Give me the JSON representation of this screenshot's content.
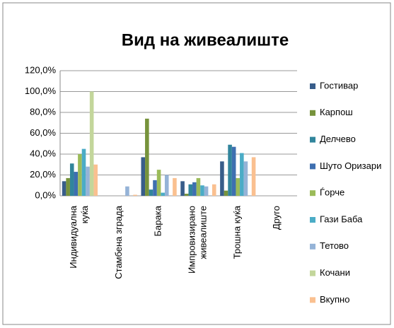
{
  "chart_data": {
    "type": "bar",
    "title": "Вид на живеалиште",
    "categories": [
      "Индивидуална\nкуќа",
      "Стамбена зграда",
      "Барака",
      "Импровизирано\nживеалиште",
      "Трошна куќа",
      "Друго"
    ],
    "series": [
      {
        "name": "Гостивар",
        "color": "#385d8a",
        "values": [
          14,
          0,
          37,
          14,
          33,
          0
        ]
      },
      {
        "name": "Карпош",
        "color": "#77933c",
        "values": [
          17,
          0,
          74,
          2,
          5,
          0
        ]
      },
      {
        "name": "Делчево",
        "color": "#31859c",
        "values": [
          31,
          0,
          6,
          11,
          49,
          0
        ]
      },
      {
        "name": "Шуто Оризари",
        "color": "#3e6fb0",
        "values": [
          23,
          0,
          15,
          13,
          47,
          0
        ]
      },
      {
        "name": "Ѓорче",
        "color": "#9bbb59",
        "values": [
          40,
          0,
          25,
          17,
          17,
          0
        ]
      },
      {
        "name": "Гази Баба",
        "color": "#4bacc6",
        "values": [
          45,
          0,
          3,
          10,
          41,
          0
        ]
      },
      {
        "name": "Тетово",
        "color": "#95b3d7",
        "values": [
          28,
          9,
          20,
          9,
          33,
          0
        ]
      },
      {
        "name": "Кочани",
        "color": "#c3d69b",
        "values": [
          100,
          0,
          0,
          0,
          0,
          0
        ]
      },
      {
        "name": "Вкупно",
        "color": "#fac090",
        "values": [
          30,
          1,
          17,
          11,
          37,
          0
        ]
      }
    ],
    "ylim": [
      0,
      120
    ],
    "yticks": [
      {
        "value": 0,
        "label": "0,0%"
      },
      {
        "value": 20,
        "label": "20,0%"
      },
      {
        "value": 40,
        "label": "40,0%"
      },
      {
        "value": 60,
        "label": "60,0%"
      },
      {
        "value": 80,
        "label": "80,0%"
      },
      {
        "value": 100,
        "label": "100,0%"
      },
      {
        "value": 120,
        "label": "120,0%"
      }
    ],
    "grid": true
  }
}
